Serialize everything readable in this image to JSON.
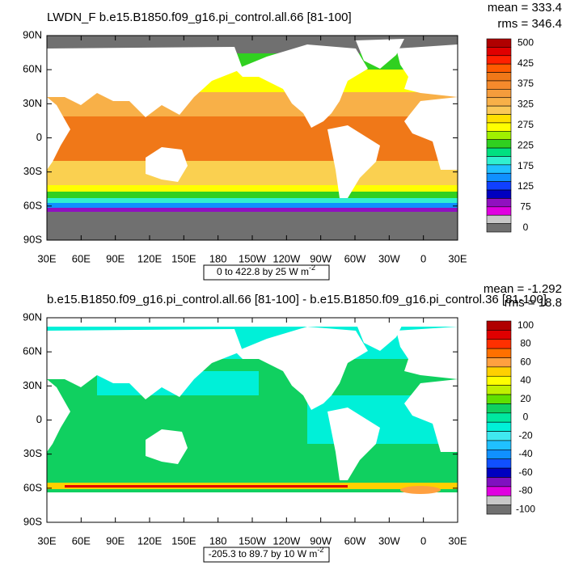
{
  "panels": [
    {
      "title": "LWDN_F b.e15.B1850.f09_g16.pi_control.all.66 [81-100]",
      "mean": "mean = 333.4",
      "rms": "rms = 346.4",
      "lat_labels": [
        "90N",
        "60N",
        "30N",
        "0",
        "30S",
        "60S",
        "90S"
      ],
      "lon_labels": [
        "30E",
        "60E",
        "90E",
        "120E",
        "150E",
        "180",
        "150W",
        "120W",
        "90W",
        "60W",
        "30W",
        "0",
        "30E"
      ],
      "info": "0 to 422.8 by 25  W m",
      "info_exponent": "-2",
      "colorbar_labels": [
        "500",
        "425",
        "375",
        "325",
        "275",
        "225",
        "175",
        "125",
        "75",
        "0"
      ],
      "colorbar_colors": [
        "#b00000",
        "#e00000",
        "#ff2000",
        "#ff5a00",
        "#f07818",
        "#f58a2c",
        "#f59c3c",
        "#f8b048",
        "#fac858",
        "#ffe000",
        "#ffff00",
        "#a0f000",
        "#30d020",
        "#00e080",
        "#30f0d0",
        "#20c0ff",
        "#1090ff",
        "#1040ff",
        "#0000c0",
        "#9010c0",
        "#e000e0",
        "#c8c8c8",
        "#707070"
      ]
    },
    {
      "title": "b.e15.B1850.f09_g16.pi_control.all.66 [81-100] - b.e15.B1850.f09_g16.pi_control.36 [81-100]",
      "mean": "mean = -1.292",
      "rms": "rms = 18.8",
      "lat_labels": [
        "90N",
        "60N",
        "30N",
        "0",
        "30S",
        "60S",
        "90S"
      ],
      "lon_labels": [
        "30E",
        "60E",
        "90E",
        "120E",
        "150E",
        "180",
        "150W",
        "120W",
        "90W",
        "60W",
        "30W",
        "0",
        "30E"
      ],
      "info": "-205.3 to 89.7 by 10  W m",
      "info_exponent": "-2",
      "colorbar_labels": [
        "100",
        "80",
        "60",
        "40",
        "20",
        "0",
        "-20",
        "-40",
        "-60",
        "-80",
        "-100"
      ],
      "colorbar_colors": [
        "#b00000",
        "#e00000",
        "#ff3000",
        "#ff7000",
        "#ffa040",
        "#ffd000",
        "#ffff00",
        "#c0f000",
        "#60e000",
        "#10d060",
        "#00e8a0",
        "#00f0d8",
        "#40e8f0",
        "#20c0ff",
        "#1090ff",
        "#1050ff",
        "#0000c0",
        "#8010c0",
        "#e000e0",
        "#c8c8c8",
        "#707070"
      ]
    }
  ]
}
